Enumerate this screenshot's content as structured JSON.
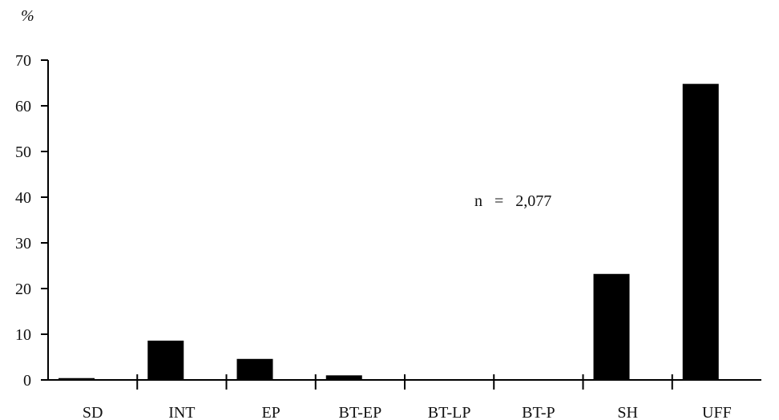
{
  "chart_data": {
    "type": "bar",
    "title": "",
    "xlabel": "",
    "ylabel": "%",
    "ylim": [
      0,
      70
    ],
    "yticks": [
      0,
      10,
      20,
      30,
      40,
      50,
      60,
      70
    ],
    "categories": [
      "SD",
      "INT",
      "EP",
      "BT-EP",
      "BT-LP",
      "BT-P",
      "SH",
      "UFF"
    ],
    "values": [
      0.4,
      8.6,
      4.6,
      1.0,
      0.1,
      0.1,
      23.2,
      64.8
    ],
    "annotations": [
      {
        "text": "n   =   2,077"
      }
    ],
    "grid": false,
    "legend": "none",
    "colors": {
      "bar": "#000000",
      "axis": "#000000",
      "text": "#111111"
    }
  }
}
